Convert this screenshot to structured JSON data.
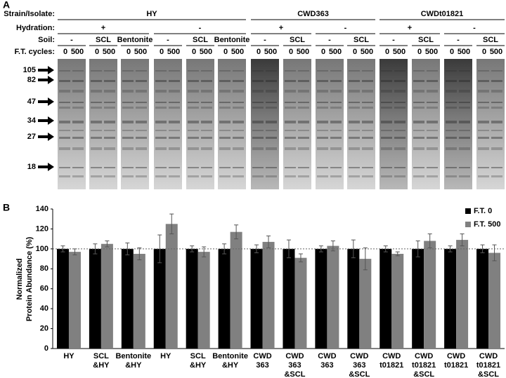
{
  "panel_a": {
    "label": "A",
    "row_labels": [
      "Strain/Isolate:",
      "Hydration:",
      "Soil:",
      "F.T. cycles:"
    ],
    "strains": [
      {
        "name": "HY",
        "hydration": [
          {
            "label": "+",
            "soils": [
              "-",
              "SCL",
              "Bentonite"
            ]
          },
          {
            "label": "-",
            "soils": [
              "-",
              "SCL",
              "Bentonite"
            ]
          }
        ]
      },
      {
        "name": "CWD363",
        "hydration": [
          {
            "label": "+",
            "soils": [
              "-",
              "SCL"
            ]
          },
          {
            "label": "-",
            "soils": [
              "-",
              "SCL"
            ]
          }
        ]
      },
      {
        "name": "CWDt01821",
        "hydration": [
          {
            "label": "+",
            "soils": [
              "-",
              "SCL"
            ]
          },
          {
            "label": "-",
            "soils": [
              "-",
              "SCL"
            ]
          }
        ]
      }
    ],
    "ft_labels": [
      "0",
      "500"
    ],
    "markers": [
      105,
      82,
      47,
      34,
      27,
      18
    ]
  },
  "chart_data": {
    "type": "bar",
    "panel_label": "B",
    "ylabel": [
      "Normalized",
      "Protein Abundance (%)"
    ],
    "categories": [
      [
        "HY"
      ],
      [
        "SCL",
        "&HY"
      ],
      [
        "Bentonite",
        "&HY"
      ],
      [
        "HY"
      ],
      [
        "SCL",
        "&HY"
      ],
      [
        "Bentonite",
        "&HY"
      ],
      [
        "CWD",
        "363"
      ],
      [
        "CWD",
        "363",
        "&SCL"
      ],
      [
        "CWD",
        "363"
      ],
      [
        "CWD",
        "363",
        "&SCL"
      ],
      [
        "CWD",
        "t01821"
      ],
      [
        "CWD",
        "t01821",
        "&SCL"
      ],
      [
        "CWD",
        "t01821"
      ],
      [
        "CWD",
        "t01821",
        "&SCL"
      ]
    ],
    "series": [
      {
        "name": "F.T. 0",
        "color": "#000000",
        "values": [
          100,
          100,
          100,
          100,
          100,
          100,
          100,
          100,
          100,
          100,
          100,
          100,
          100,
          100
        ],
        "errors": [
          3,
          5,
          6,
          14,
          3,
          5,
          4,
          9,
          3,
          9,
          3,
          8,
          3,
          4
        ]
      },
      {
        "name": "F.T. 500",
        "color": "#808080",
        "values": [
          97,
          105,
          95,
          125,
          97,
          117,
          107,
          91,
          103,
          90,
          95,
          108,
          109,
          96
        ],
        "errors": [
          3,
          3,
          6,
          10,
          5,
          7,
          6,
          4,
          5,
          11,
          2,
          7,
          6,
          8
        ]
      }
    ],
    "ylim": [
      0,
      140
    ],
    "yticks": [
      0,
      20,
      40,
      60,
      80,
      100,
      120,
      140
    ],
    "reference_line": 100,
    "legend": "top-right"
  }
}
